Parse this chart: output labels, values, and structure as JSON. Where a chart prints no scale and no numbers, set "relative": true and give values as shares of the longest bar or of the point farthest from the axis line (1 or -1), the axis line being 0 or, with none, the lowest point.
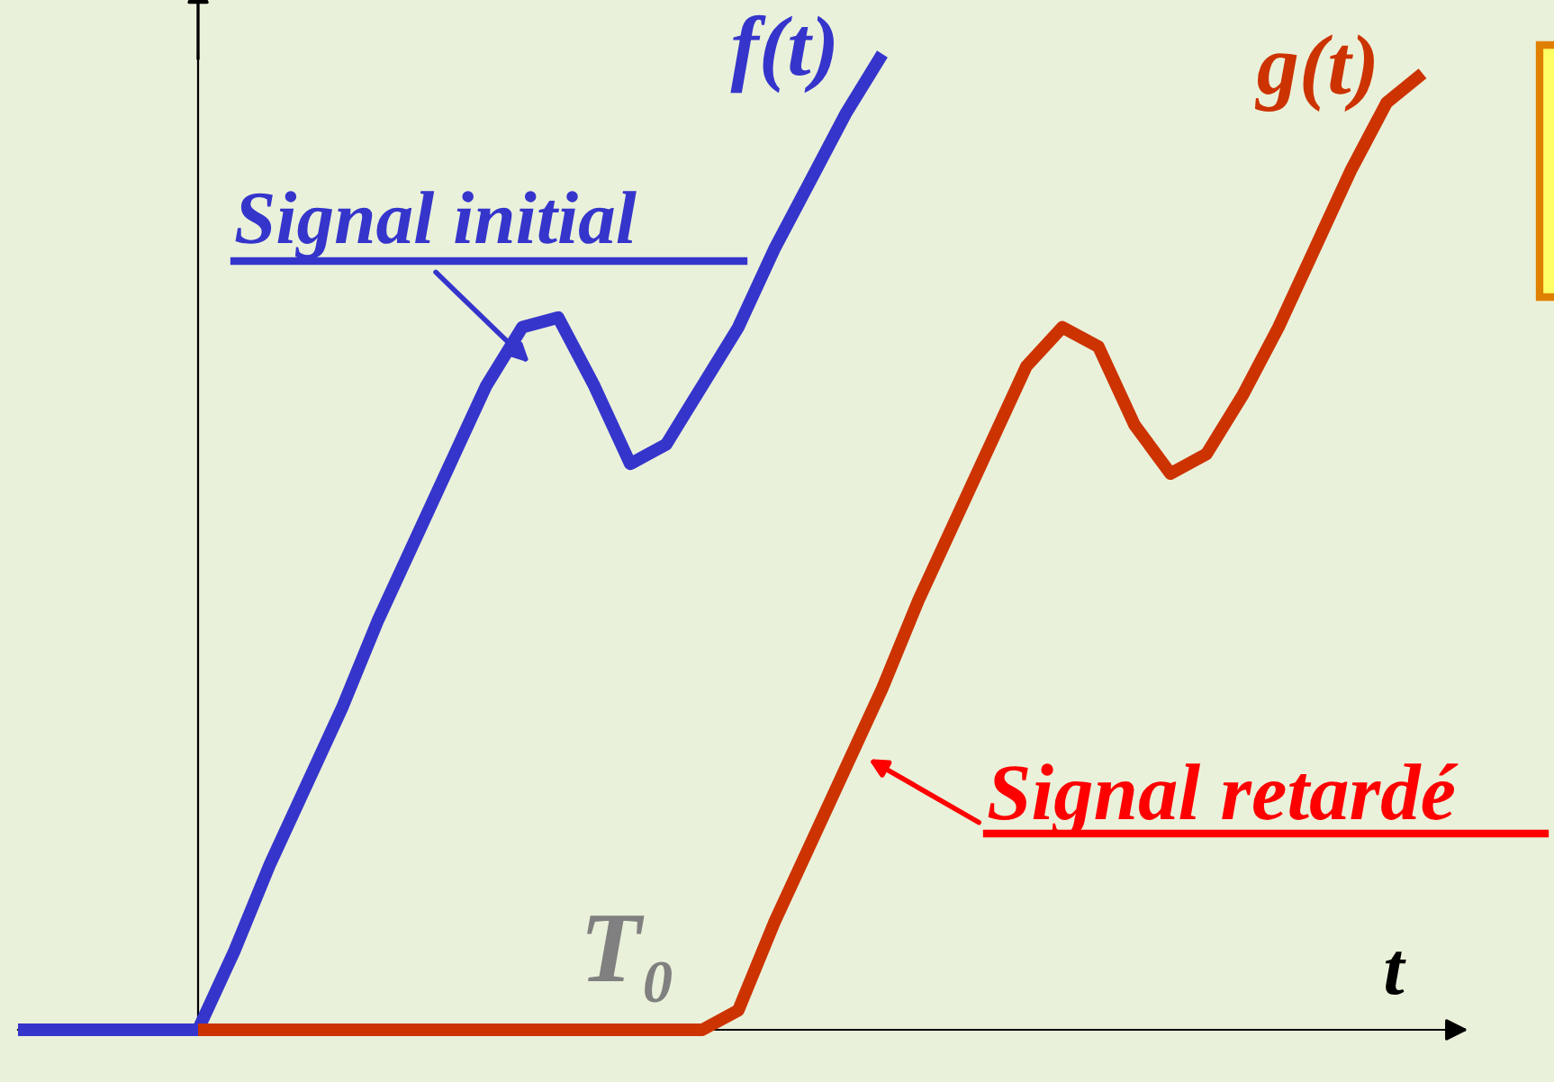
{
  "chart_data": {
    "type": "line",
    "relative": true,
    "xlabel": "t",
    "legend": false,
    "grid": false,
    "marker": "none",
    "line_style": "solid",
    "categories": [
      null,
      null,
      null,
      null,
      null,
      null,
      null,
      null,
      null,
      null,
      null,
      null,
      null,
      null,
      null,
      null,
      null,
      null,
      null,
      null,
      null,
      null,
      null,
      null,
      null,
      null,
      null,
      null,
      null,
      null,
      null,
      null,
      null,
      null,
      null,
      null,
      null,
      null,
      null,
      null,
      null
    ],
    "series": [
      {
        "name": "f(t)",
        "color": "#3535cc",
        "values": [
          0,
          0,
          0,
          0,
          0,
          0,
          0.08,
          0.17,
          0.25,
          0.33,
          0.42,
          0.5,
          0.58,
          0.66,
          0.72,
          0.73,
          0.66,
          0.58,
          0.6,
          0.66,
          0.72,
          0.8,
          0.87,
          0.94,
          1.0,
          null,
          null,
          null,
          null,
          null,
          null,
          null,
          null,
          null,
          null,
          null,
          null,
          null,
          null,
          null,
          null
        ]
      },
      {
        "name": "g(t)",
        "color": "#cc3300",
        "values": [
          null,
          null,
          null,
          null,
          null,
          0,
          0,
          0,
          0,
          0,
          0,
          0,
          0,
          0,
          0,
          0,
          0,
          0,
          0,
          0,
          0.02,
          0.11,
          0.19,
          0.27,
          0.35,
          0.44,
          0.52,
          0.6,
          0.68,
          0.72,
          0.7,
          0.62,
          0.57,
          0.59,
          0.65,
          0.72,
          0.8,
          0.88,
          0.95,
          0.98,
          null
        ]
      }
    ],
    "annotations": [
      "Signal initial",
      "Signal retardé",
      "T₀"
    ]
  }
}
